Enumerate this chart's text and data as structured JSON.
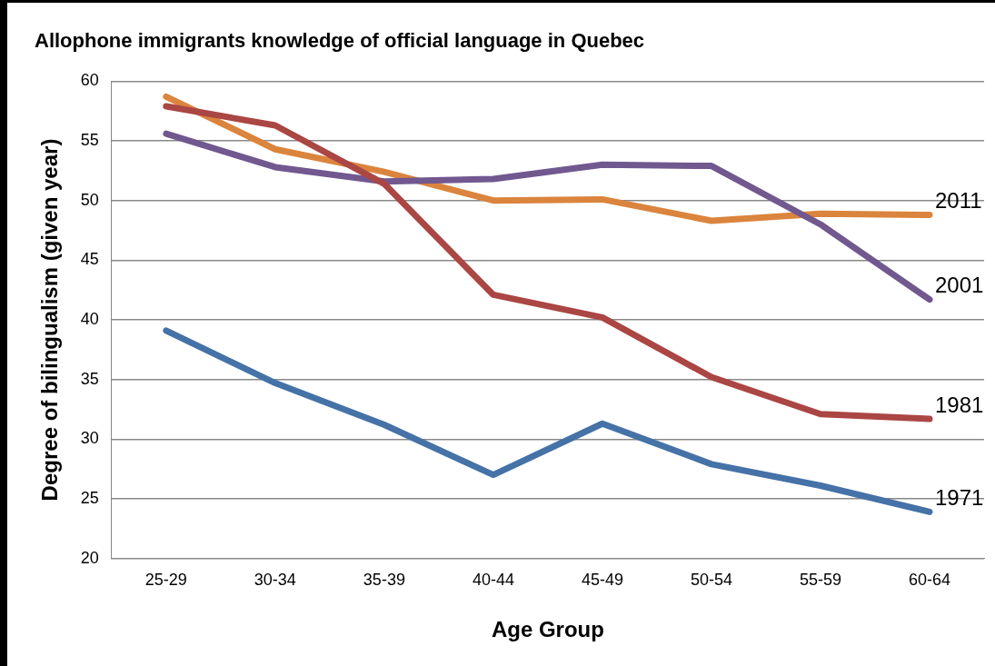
{
  "chart_data": {
    "type": "line",
    "title": "Allophone immigrants knowledge of official language in Quebec",
    "xlabel": "Age Group",
    "ylabel": "Degree of bilingualism (given year)",
    "categories": [
      "25-29",
      "30-34",
      "35-39",
      "40-44",
      "45-49",
      "50-54",
      "55-59",
      "60-64"
    ],
    "series": [
      {
        "name": "1971",
        "color": "#4572a7",
        "values": [
          39.1,
          34.7,
          31.2,
          27.0,
          31.3,
          27.9,
          26.1,
          23.9
        ]
      },
      {
        "name": "1981",
        "color": "#aa4643",
        "values": [
          57.9,
          56.3,
          51.4,
          42.1,
          40.2,
          35.2,
          32.1,
          31.7
        ]
      },
      {
        "name": "2001",
        "color": "#71588f",
        "values": [
          55.6,
          52.8,
          51.6,
          51.8,
          53.0,
          52.9,
          48.0,
          41.7
        ]
      },
      {
        "name": "2011",
        "color": "#db843d",
        "values": [
          58.7,
          54.3,
          52.4,
          50.0,
          50.1,
          48.3,
          48.9,
          48.8
        ]
      }
    ],
    "ylim": [
      20,
      60
    ],
    "yticks": [
      20,
      25,
      30,
      35,
      40,
      45,
      50,
      55,
      60
    ],
    "grid": "y",
    "marker": "none",
    "line_style": "solid",
    "legend": false
  }
}
